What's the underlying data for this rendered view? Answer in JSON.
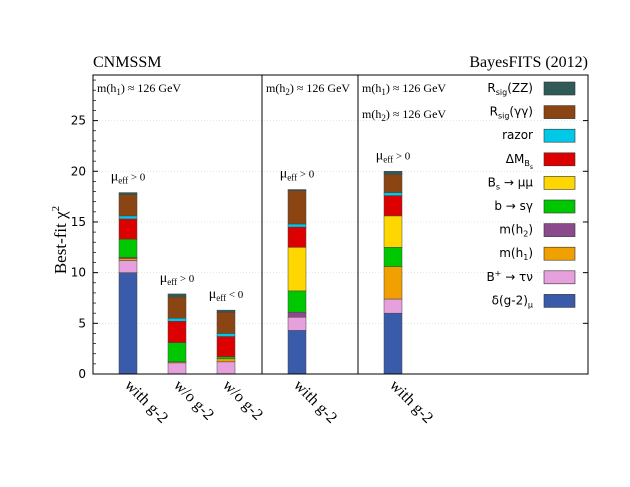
{
  "chart_data": {
    "type": "bar",
    "stacked": true,
    "header_left": "CNMSSM",
    "header_right": "BayesFITS (2012)",
    "ylabel": "Best-fit",
    "ylabel_symbol": "χ",
    "ylabel_sup": "2",
    "ylim": [
      0,
      29.5
    ],
    "yticks": [
      0,
      5,
      10,
      15,
      20,
      25
    ],
    "grid": true,
    "legend_position": "right",
    "panels": [
      {
        "annotations": [
          {
            "text": "m(h",
            "sub": "1",
            "rest": ") ≈ 126  GeV"
          }
        ]
      },
      {
        "annotations": [
          {
            "text": "m(h",
            "sub": "2",
            "rest": ") ≈ 126  GeV"
          }
        ]
      },
      {
        "annotations": [
          {
            "text": "m(h",
            "sub": "1",
            "rest": ") ≈ 126  GeV"
          },
          {
            "text": "m(h",
            "sub": "2",
            "rest": ") ≈ 126  GeV"
          }
        ]
      }
    ],
    "legend": [
      {
        "key": "rzz",
        "label": "R",
        "sub": "sig",
        "rest": "(ZZ)",
        "color": "#2f5a55"
      },
      {
        "key": "rgg",
        "label": "R",
        "sub": "sig",
        "rest": "(γγ)",
        "color": "#8b4513"
      },
      {
        "key": "razor",
        "label": "razor",
        "sub": "",
        "rest": "",
        "color": "#00c8e6"
      },
      {
        "key": "dmbs",
        "label": "ΔM",
        "sub": "B",
        "subsub": "s",
        "rest": "",
        "color": "#dd0000"
      },
      {
        "key": "bsmumu",
        "label": "B",
        "sub": "s",
        "rest": " → μμ",
        "color": "#ffd700"
      },
      {
        "key": "bsg",
        "label": "b → sγ",
        "sub": "",
        "rest": "",
        "color": "#00c800"
      },
      {
        "key": "mh2",
        "label": "m(h",
        "sub": "2",
        "rest": ")",
        "color": "#8b4a8b"
      },
      {
        "key": "mh1",
        "label": "m(h",
        "sub": "1",
        "rest": ")",
        "color": "#f0a000"
      },
      {
        "key": "btaunu",
        "label": "B",
        "sup": "+",
        "rest": " → τν",
        "color": "#e6a0dc"
      },
      {
        "key": "g2",
        "label": "δ(g-2)",
        "sub": "μ",
        "rest": "",
        "color": "#3a5aaa"
      }
    ],
    "bars": [
      {
        "panel": 0,
        "xlabel": "with  g-2",
        "mu_label": "μ",
        "mu_sub": "eff",
        "mu_rest": " > 0",
        "segments": {
          "g2": 10.0,
          "btaunu": 1.2,
          "mh1": 0.2,
          "mh2": 0.1,
          "bsg": 1.8,
          "bsmumu": 0.0,
          "dmbs": 2.0,
          "razor": 0.3,
          "rgg": 2.1,
          "rzz": 0.2
        }
      },
      {
        "panel": 0,
        "xlabel": "w/o  g-2",
        "mu_label": "μ",
        "mu_sub": "eff",
        "mu_rest": " > 0",
        "segments": {
          "g2": 0.0,
          "btaunu": 1.1,
          "mh1": 0.1,
          "mh2": 0.0,
          "bsg": 1.9,
          "bsmumu": 0.0,
          "dmbs": 2.1,
          "razor": 0.3,
          "rgg": 2.1,
          "rzz": 0.3
        }
      },
      {
        "panel": 0,
        "xlabel": "w/o  g-2",
        "mu_label": "μ",
        "mu_sub": "eff",
        "mu_rest": " < 0",
        "segments": {
          "g2": 0.0,
          "btaunu": 1.2,
          "mh1": 0.3,
          "mh2": 0.0,
          "bsg": 0.2,
          "bsmumu": 0.0,
          "dmbs": 2.0,
          "razor": 0.3,
          "rgg": 2.1,
          "rzz": 0.2
        }
      },
      {
        "panel": 1,
        "xlabel": "with  g-2",
        "mu_label": "μ",
        "mu_sub": "eff",
        "mu_rest": " > 0",
        "segments": {
          "g2": 4.3,
          "btaunu": 1.3,
          "mh1": 0.0,
          "mh2": 0.5,
          "bsg": 2.1,
          "bsmumu": 4.3,
          "dmbs": 2.0,
          "razor": 0.3,
          "rgg": 3.3,
          "rzz": 0.1
        }
      },
      {
        "panel": 2,
        "xlabel": "with  g-2",
        "mu_label": "μ",
        "mu_sub": "eff",
        "mu_rest": " > 0",
        "segments": {
          "g2": 6.0,
          "btaunu": 1.4,
          "mh1": 3.2,
          "mh2": 0.0,
          "bsg": 1.9,
          "bsmumu": 3.1,
          "dmbs": 2.0,
          "razor": 0.3,
          "rgg": 1.8,
          "rzz": 0.3
        }
      }
    ]
  }
}
